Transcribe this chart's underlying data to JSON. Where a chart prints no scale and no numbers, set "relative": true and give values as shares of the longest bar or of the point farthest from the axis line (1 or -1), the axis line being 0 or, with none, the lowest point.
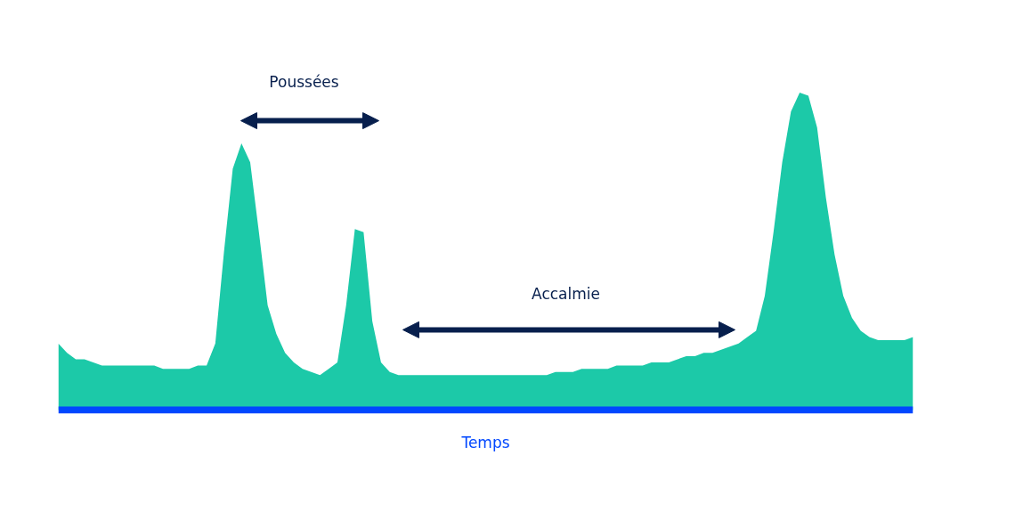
{
  "chart_data": {
    "type": "area",
    "relative": true,
    "xlabel": "Temps",
    "annotations": [
      "Poussées",
      "Accalmie"
    ],
    "categories": [
      null,
      null,
      null,
      null,
      null,
      null,
      null,
      null,
      null,
      null,
      null,
      null,
      null,
      null,
      null,
      null,
      null,
      null,
      null,
      null,
      null,
      null,
      null,
      null,
      null,
      null,
      null,
      null,
      null,
      null,
      null,
      null,
      null,
      null,
      null,
      null,
      null,
      null,
      null,
      null,
      null,
      null,
      null,
      null,
      null,
      null,
      null,
      null,
      null,
      null,
      null,
      null,
      null,
      null,
      null,
      null,
      null,
      null,
      null,
      null,
      null,
      null,
      null,
      null,
      null,
      null,
      null,
      null,
      null,
      null,
      null,
      null,
      null,
      null,
      null,
      null,
      null,
      null,
      null,
      null,
      null,
      null,
      null,
      null,
      null,
      null,
      null,
      null,
      null,
      null,
      null,
      null,
      null,
      null,
      null,
      null,
      null,
      null,
      null
    ],
    "series": [
      {
        "color": "#1cc9a8",
        "values": [
          0.21,
          0.18,
          0.16,
          0.16,
          0.15,
          0.14,
          0.14,
          0.14,
          0.14,
          0.14,
          0.14,
          0.14,
          0.13,
          0.13,
          0.13,
          0.13,
          0.14,
          0.14,
          0.21,
          0.5,
          0.76,
          0.84,
          0.78,
          0.56,
          0.33,
          0.24,
          0.18,
          0.15,
          0.13,
          0.12,
          0.11,
          0.13,
          0.15,
          0.33,
          0.57,
          0.56,
          0.28,
          0.15,
          0.12,
          0.11,
          0.11,
          0.11,
          0.11,
          0.11,
          0.11,
          0.11,
          0.11,
          0.11,
          0.11,
          0.11,
          0.11,
          0.11,
          0.11,
          0.11,
          0.11,
          0.11,
          0.11,
          0.12,
          0.12,
          0.12,
          0.13,
          0.13,
          0.13,
          0.13,
          0.14,
          0.14,
          0.14,
          0.14,
          0.15,
          0.15,
          0.15,
          0.16,
          0.17,
          0.17,
          0.18,
          0.18,
          0.19,
          0.2,
          0.21,
          0.23,
          0.25,
          0.36,
          0.56,
          0.78,
          0.94,
          1.0,
          0.99,
          0.89,
          0.67,
          0.49,
          0.36,
          0.29,
          0.25,
          0.23,
          0.22,
          0.22,
          0.22,
          0.22,
          0.23
        ]
      }
    ]
  }
}
